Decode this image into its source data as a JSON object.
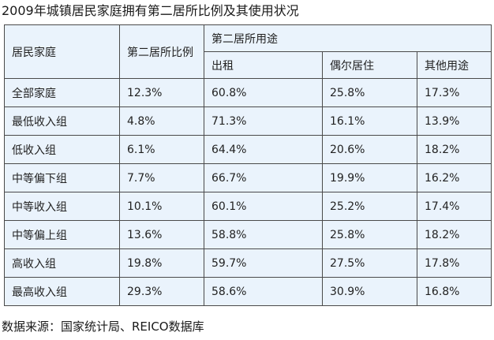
{
  "title": "2009年城镇居民家庭拥有第二居所比例及其使用状况",
  "headers": {
    "household": "居民家庭",
    "ratio": "第二居所比例",
    "use_group": "第二居所用途",
    "rent": "出租",
    "occasional": "偶尔居住",
    "other": "其他用途"
  },
  "rows": [
    {
      "group": "全部家庭",
      "ratio": "12.3%",
      "rent": "60.8%",
      "occasional": "25.8%",
      "other": "17.3%"
    },
    {
      "group": "最低收入组",
      "ratio": "4.8%",
      "rent": "71.3%",
      "occasional": "16.1%",
      "other": "13.9%"
    },
    {
      "group": "低收入组",
      "ratio": "6.1%",
      "rent": "64.4%",
      "occasional": "20.6%",
      "other": "18.2%"
    },
    {
      "group": "中等偏下组",
      "ratio": "7.7%",
      "rent": "66.7%",
      "occasional": "19.9%",
      "other": "16.2%"
    },
    {
      "group": "中等收入组",
      "ratio": "10.1%",
      "rent": "60.1%",
      "occasional": "25.2%",
      "other": "17.4%"
    },
    {
      "group": "中等偏上组",
      "ratio": "13.6%",
      "rent": "58.8%",
      "occasional": "25.8%",
      "other": "18.2%"
    },
    {
      "group": "高收入组",
      "ratio": "19.8%",
      "rent": "59.7%",
      "occasional": "27.5%",
      "other": "17.8%"
    },
    {
      "group": "最高收入组",
      "ratio": "29.3%",
      "rent": "58.6%",
      "occasional": "30.9%",
      "other": "16.8%"
    }
  ],
  "source": "数据来源：国家统计局、REICO数据库"
}
